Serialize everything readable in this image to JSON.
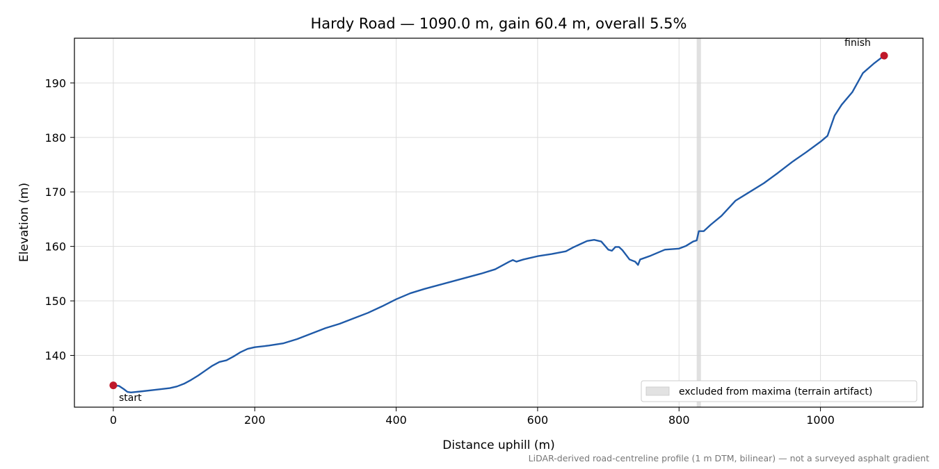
{
  "chart_data": {
    "type": "line",
    "title": "Hardy Road — 1090.0 m, gain 60.4 m, overall 5.5%",
    "xlabel": "Distance uphill (m)",
    "ylabel": "Elevation (m)",
    "xlim": [
      -55,
      1145
    ],
    "ylim": [
      130.5,
      198.2
    ],
    "xticks": [
      0,
      200,
      400,
      600,
      800,
      1000
    ],
    "yticks": [
      140,
      150,
      160,
      170,
      180,
      190
    ],
    "grid": true,
    "line_color": "#1f5aa8",
    "marker_color": "#c0182a",
    "series": [
      {
        "x": [
          0,
          8,
          15,
          20,
          25,
          40,
          60,
          80,
          90,
          100,
          110,
          120,
          130,
          140,
          150,
          160,
          170,
          180,
          190,
          200,
          220,
          240,
          260,
          280,
          300,
          320,
          340,
          360,
          380,
          400,
          420,
          440,
          460,
          480,
          500,
          520,
          540,
          560,
          565,
          570,
          580,
          600,
          620,
          640,
          650,
          660,
          670,
          680,
          690,
          700,
          705,
          710,
          715,
          720,
          730,
          738,
          742,
          745,
          760,
          780,
          800,
          810,
          820,
          825,
          828,
          835,
          845,
          860,
          880,
          900,
          920,
          940,
          960,
          980,
          1000,
          1010,
          1020,
          1030,
          1045,
          1060,
          1075,
          1090
        ],
        "y": [
          134.5,
          134.4,
          133.8,
          133.3,
          133.2,
          133.4,
          133.7,
          134.0,
          134.3,
          134.8,
          135.5,
          136.3,
          137.2,
          138.1,
          138.8,
          139.1,
          139.8,
          140.6,
          141.2,
          141.5,
          141.8,
          142.2,
          143.0,
          144.0,
          145.0,
          145.8,
          146.8,
          147.8,
          149.0,
          150.3,
          151.4,
          152.2,
          152.9,
          153.6,
          154.3,
          155.0,
          155.8,
          157.2,
          157.5,
          157.2,
          157.6,
          158.2,
          158.6,
          159.1,
          159.8,
          160.4,
          161.0,
          161.2,
          160.9,
          159.4,
          159.2,
          159.9,
          159.9,
          159.3,
          157.6,
          157.2,
          156.6,
          157.6,
          158.3,
          159.4,
          159.6,
          160.1,
          160.9,
          161.1,
          162.8,
          162.8,
          164.0,
          165.6,
          168.4,
          170.0,
          171.6,
          173.5,
          175.5,
          177.3,
          179.2,
          180.3,
          184.0,
          186.0,
          188.3,
          191.8,
          193.5,
          195.0
        ]
      }
    ],
    "start_point": {
      "x": 0,
      "y": 134.5
    },
    "finish_point": {
      "x": 1090,
      "y": 195.0
    },
    "start_label": "start",
    "finish_label": "finish",
    "excluded_band": {
      "x0": 825,
      "x1": 831
    },
    "legend_label": "excluded from maxima (terrain artifact)",
    "legend_position": "lower-right",
    "footnote": "LiDAR-derived road-centreline profile (1 m DTM, bilinear) — not a surveyed asphalt gradient"
  }
}
